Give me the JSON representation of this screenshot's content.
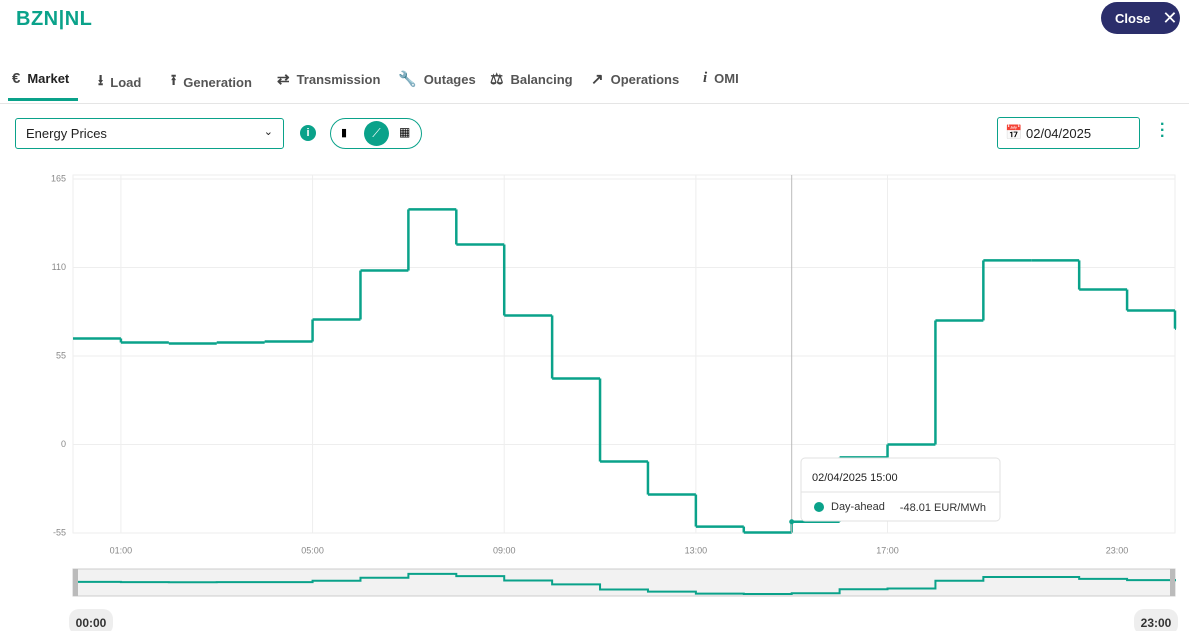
{
  "header": {
    "title": "BZN|NL",
    "close": "Close"
  },
  "tabs": [
    "Market",
    "Load",
    "Generation",
    "Transmission",
    "Outages",
    "Balancing",
    "Operations",
    "OMI"
  ],
  "controls": {
    "dataset": "Energy Prices",
    "date": "02/04/2025"
  },
  "chart_data": {
    "type": "step",
    "categories": [
      null,
      "01:00",
      null,
      null,
      null,
      "05:00",
      null,
      null,
      null,
      "09:00",
      null,
      null,
      null,
      "13:00",
      null,
      null,
      null,
      "17:00",
      null,
      null,
      null,
      null,
      null,
      "23:00"
    ],
    "series": [
      {
        "name": "Day-ahead",
        "color": "#0aa28a",
        "values": [
          65.9,
          63.4,
          62.8,
          63.4,
          64.0,
          77.7,
          108.1,
          146.1,
          124.3,
          80.2,
          41.0,
          -10.6,
          -31.1,
          -51.0,
          -54.7,
          -48.01,
          -8.0,
          0.0,
          77.1,
          114.4,
          114.4,
          96.3,
          83.3,
          72.0
        ],
        "value_labels": [
          null,
          null,
          null,
          null,
          null,
          null,
          null,
          null,
          null,
          null,
          null,
          null,
          null,
          null,
          null,
          "-48.01 EUR/MWh",
          null,
          null,
          null,
          null,
          null,
          null,
          null,
          null
        ]
      }
    ],
    "ylim": [
      -55,
      165
    ],
    "yticks": [
      165,
      110,
      55,
      0,
      -55
    ],
    "grid": true,
    "tooltip": {
      "title": "02/04/2025 15:00",
      "index": 15
    },
    "range": {
      "start": "00:00",
      "end": "23:00"
    }
  }
}
